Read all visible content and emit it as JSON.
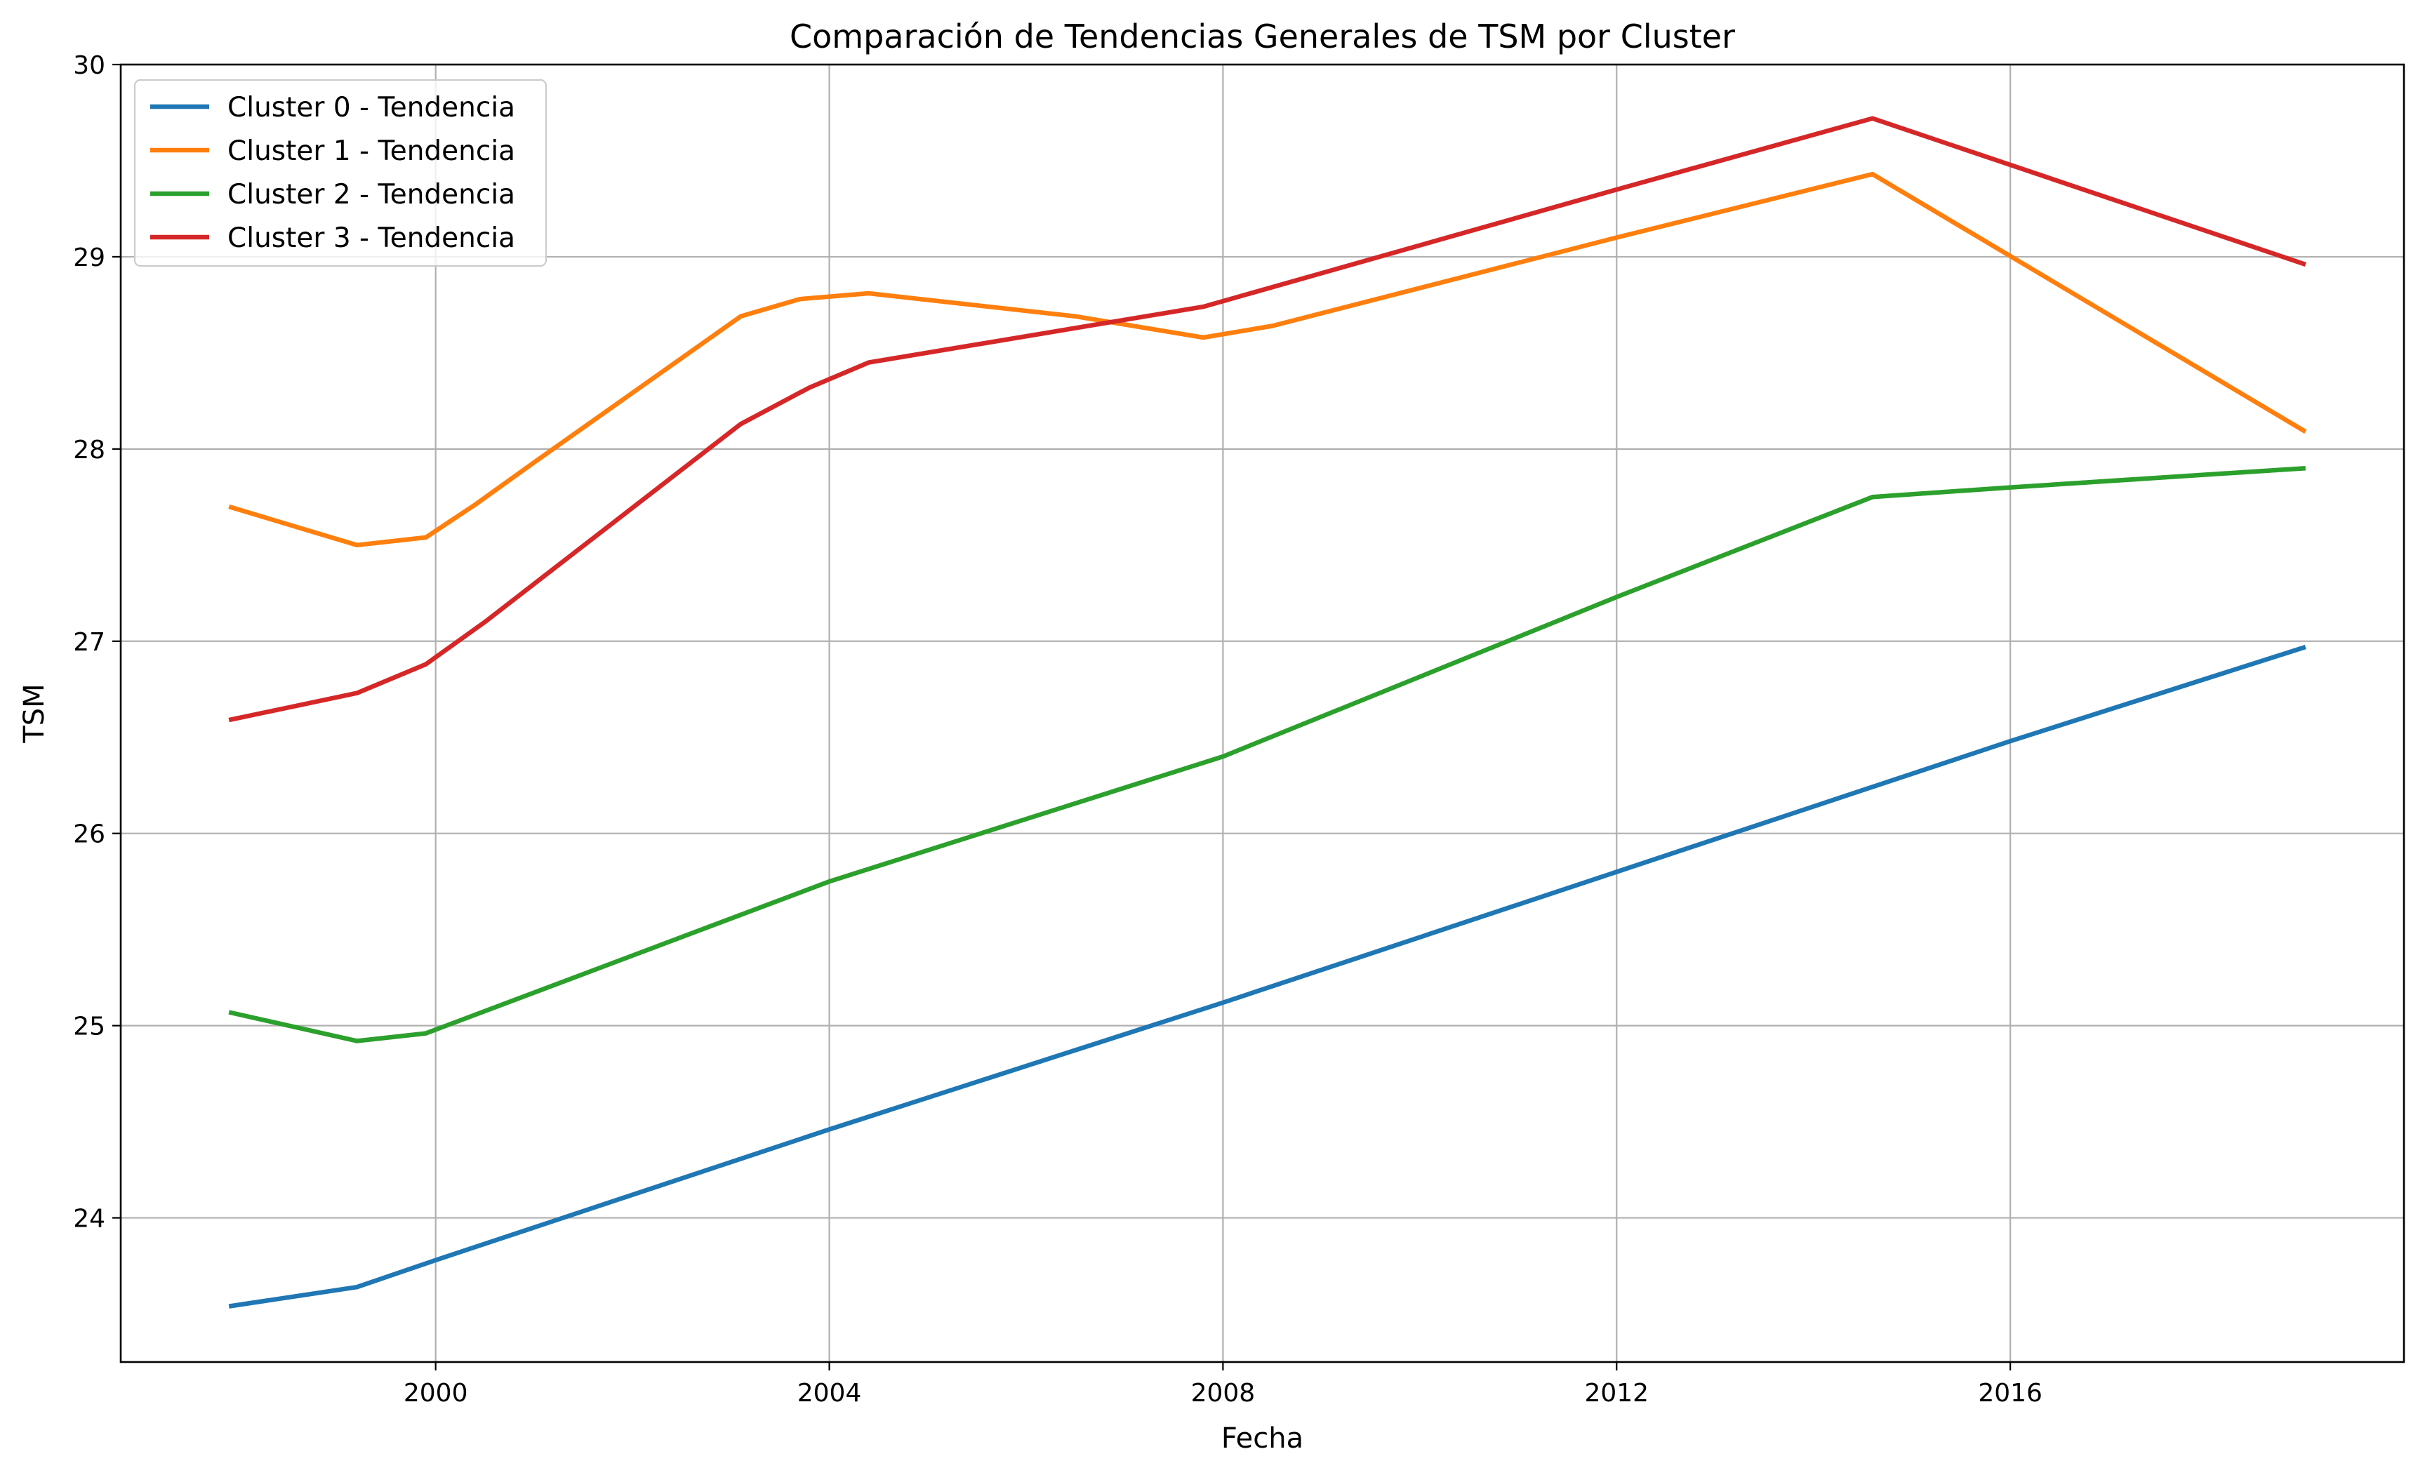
{
  "chart_data": {
    "type": "line",
    "title": "Comparación de Tendencias Generales de TSM por Cluster",
    "xlabel": "Fecha",
    "ylabel": "TSM",
    "xlim": [
      1996.8,
      2020.0
    ],
    "ylim": [
      23.25,
      30.0
    ],
    "xticks": [
      2000,
      2004,
      2008,
      2012,
      2016
    ],
    "yticks": [
      24,
      25,
      26,
      27,
      28,
      29,
      30
    ],
    "grid": true,
    "legend_position": "top-left",
    "series": [
      {
        "name": "Cluster 0 - Tendencia",
        "color": "#1f77b4",
        "points": [
          [
            1997.9,
            23.54
          ],
          [
            1999.2,
            23.64
          ],
          [
            2000.0,
            23.78
          ],
          [
            2004.0,
            24.46
          ],
          [
            2008.0,
            25.12
          ],
          [
            2012.0,
            25.8
          ],
          [
            2016.0,
            26.48
          ],
          [
            2019.0,
            26.97
          ]
        ]
      },
      {
        "name": "Cluster 1 - Tendencia",
        "color": "#ff7f0e",
        "points": [
          [
            1997.9,
            27.7
          ],
          [
            1999.2,
            27.5
          ],
          [
            1999.9,
            27.54
          ],
          [
            2000.4,
            27.71
          ],
          [
            2001.0,
            27.93
          ],
          [
            2003.1,
            28.69
          ],
          [
            2003.7,
            28.78
          ],
          [
            2004.4,
            28.81
          ],
          [
            2006.5,
            28.69
          ],
          [
            2007.8,
            28.58
          ],
          [
            2008.5,
            28.64
          ],
          [
            2012.0,
            29.1
          ],
          [
            2014.6,
            29.43
          ],
          [
            2019.0,
            28.09
          ]
        ]
      },
      {
        "name": "Cluster 2 - Tendencia",
        "color": "#2ca02c",
        "points": [
          [
            1997.9,
            25.07
          ],
          [
            1999.2,
            24.92
          ],
          [
            1999.9,
            24.96
          ],
          [
            2004.0,
            25.75
          ],
          [
            2008.0,
            26.4
          ],
          [
            2012.0,
            27.23
          ],
          [
            2014.6,
            27.75
          ],
          [
            2016.0,
            27.8
          ],
          [
            2019.0,
            27.9
          ]
        ]
      },
      {
        "name": "Cluster 3 - Tendencia",
        "color": "#d62728",
        "points": [
          [
            1997.9,
            26.59
          ],
          [
            1999.2,
            26.73
          ],
          [
            1999.9,
            26.88
          ],
          [
            2000.5,
            27.1
          ],
          [
            2003.1,
            28.13
          ],
          [
            2003.8,
            28.32
          ],
          [
            2004.4,
            28.45
          ],
          [
            2007.8,
            28.74
          ],
          [
            2012.0,
            29.35
          ],
          [
            2014.6,
            29.72
          ],
          [
            2019.0,
            28.96
          ]
        ]
      }
    ]
  }
}
